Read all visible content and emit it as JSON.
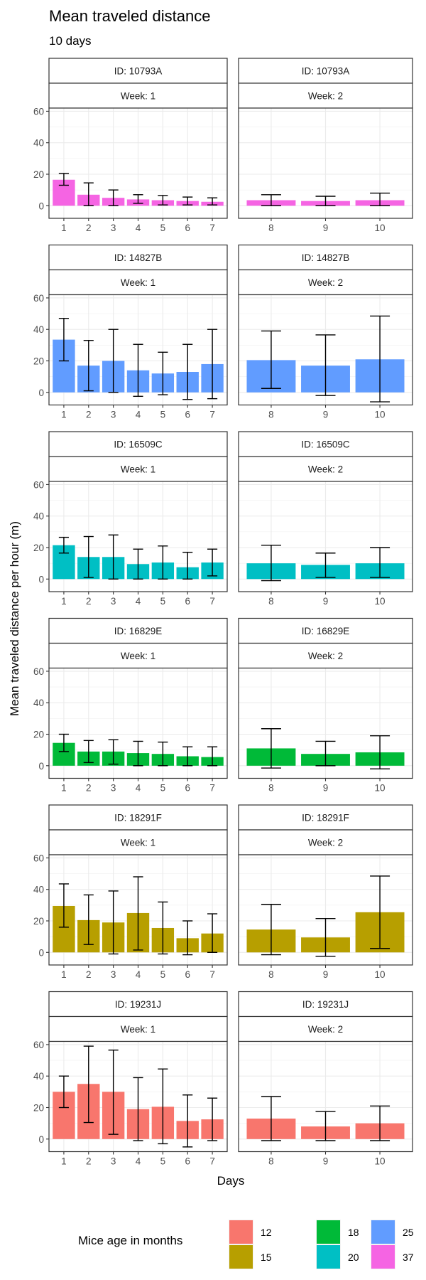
{
  "chart_data": {
    "type": "bar",
    "title": "Mean traveled distance",
    "subtitle": "10  days",
    "xlabel": "Days",
    "ylabel": "Mean traveled distance per hour (m)",
    "ylim": [
      -8,
      62
    ],
    "yticks": [
      "0",
      "20",
      "40",
      "60"
    ],
    "grid": true,
    "legend": {
      "title": "Mice age in months",
      "position": "bottom",
      "items": [
        {
          "label": "12",
          "color": "#F8766D"
        },
        {
          "label": "15",
          "color": "#B79F00"
        },
        {
          "label": "18",
          "color": "#00BA38"
        },
        {
          "label": "20",
          "color": "#00BFC4"
        },
        {
          "label": "25",
          "color": "#619CFF"
        },
        {
          "label": "37",
          "color": "#F564E3"
        }
      ]
    },
    "rows": [
      {
        "id_label": "ID: 10793A",
        "age": "37",
        "color": "#F564E3",
        "week1": {
          "strip": "Week: 1",
          "days": [
            "1",
            "2",
            "3",
            "4",
            "5",
            "6",
            "7"
          ],
          "values": [
            16.5,
            7,
            5,
            4,
            3.5,
            3,
            2.5
          ],
          "err_low": [
            13,
            0,
            0,
            1.5,
            0.5,
            0.5,
            0.5
          ],
          "err_high": [
            20.5,
            14.5,
            10,
            7,
            6.5,
            5.5,
            5
          ]
        },
        "week2": {
          "strip": "Week: 2",
          "days": [
            "8",
            "9",
            "10"
          ],
          "values": [
            3.5,
            3,
            3.5
          ],
          "err_low": [
            0,
            0,
            0
          ],
          "err_high": [
            7,
            6,
            8
          ]
        }
      },
      {
        "id_label": "ID: 14827B",
        "age": "25",
        "color": "#619CFF",
        "week1": {
          "strip": "Week: 1",
          "days": [
            "1",
            "2",
            "3",
            "4",
            "5",
            "6",
            "7"
          ],
          "values": [
            33.5,
            17,
            20,
            14,
            12,
            13,
            18
          ],
          "err_low": [
            20,
            1,
            0,
            -2.5,
            -1.5,
            -4.5,
            -4
          ],
          "err_high": [
            47,
            33,
            40,
            30.5,
            25.5,
            30.5,
            40
          ]
        },
        "week2": {
          "strip": "Week: 2",
          "days": [
            "8",
            "9",
            "10"
          ],
          "values": [
            20.5,
            17,
            21
          ],
          "err_low": [
            2.5,
            -2,
            -6
          ],
          "err_high": [
            39,
            36.5,
            48.5
          ]
        }
      },
      {
        "id_label": "ID: 16509C",
        "age": "20",
        "color": "#00BFC4",
        "week1": {
          "strip": "Week: 1",
          "days": [
            "1",
            "2",
            "3",
            "4",
            "5",
            "6",
            "7"
          ],
          "values": [
            21.5,
            14,
            14,
            9.5,
            10.5,
            7.5,
            10.5
          ],
          "err_low": [
            16.5,
            1,
            0,
            0,
            0,
            0,
            2
          ],
          "err_high": [
            26.5,
            27,
            28,
            19,
            21,
            17,
            19
          ]
        },
        "week2": {
          "strip": "Week: 2",
          "days": [
            "8",
            "9",
            "10"
          ],
          "values": [
            10,
            9,
            10
          ],
          "err_low": [
            -1,
            1,
            1
          ],
          "err_high": [
            21.5,
            16.5,
            20
          ]
        }
      },
      {
        "id_label": "ID: 16829E",
        "age": "18",
        "color": "#00BA38",
        "week1": {
          "strip": "Week: 1",
          "days": [
            "1",
            "2",
            "3",
            "4",
            "5",
            "6",
            "7"
          ],
          "values": [
            14.5,
            9,
            9,
            8,
            7.5,
            6,
            5.5
          ],
          "err_low": [
            9,
            2,
            1,
            0,
            0,
            0,
            0
          ],
          "err_high": [
            20,
            16,
            16.5,
            15.5,
            15,
            12,
            12
          ]
        },
        "week2": {
          "strip": "Week: 2",
          "days": [
            "8",
            "9",
            "10"
          ],
          "values": [
            11,
            7.5,
            8.5
          ],
          "err_low": [
            -1.5,
            0,
            -2
          ],
          "err_high": [
            23.5,
            15.5,
            19
          ]
        }
      },
      {
        "id_label": "ID: 18291F",
        "age": "15",
        "color": "#B79F00",
        "week1": {
          "strip": "Week: 1",
          "days": [
            "1",
            "2",
            "3",
            "4",
            "5",
            "6",
            "7"
          ],
          "values": [
            29.5,
            20.5,
            19,
            25,
            15.5,
            9,
            12
          ],
          "err_low": [
            16,
            5,
            -1,
            1.5,
            -1,
            -1.5,
            0
          ],
          "err_high": [
            43.5,
            36.5,
            39,
            48,
            32,
            20,
            24.5
          ]
        },
        "week2": {
          "strip": "Week: 2",
          "days": [
            "8",
            "9",
            "10"
          ],
          "values": [
            14.5,
            9.5,
            25.5
          ],
          "err_low": [
            -1.5,
            -2.5,
            2.5
          ],
          "err_high": [
            30.5,
            21.5,
            48.5
          ]
        }
      },
      {
        "id_label": "ID: 19231J",
        "age": "12",
        "color": "#F8766D",
        "week1": {
          "strip": "Week: 1",
          "days": [
            "1",
            "2",
            "3",
            "4",
            "5",
            "6",
            "7"
          ],
          "values": [
            30,
            35,
            30,
            19,
            20.5,
            11.5,
            12.5
          ],
          "err_low": [
            20,
            10.5,
            3,
            -1,
            -3,
            -5,
            -1
          ],
          "err_high": [
            40,
            59,
            56.5,
            39,
            44.5,
            28,
            26
          ]
        },
        "week2": {
          "strip": "Week: 2",
          "days": [
            "8",
            "9",
            "10"
          ],
          "values": [
            13,
            8,
            10
          ],
          "err_low": [
            -1,
            -1,
            -1
          ],
          "err_high": [
            27,
            17.5,
            21
          ]
        }
      }
    ]
  }
}
